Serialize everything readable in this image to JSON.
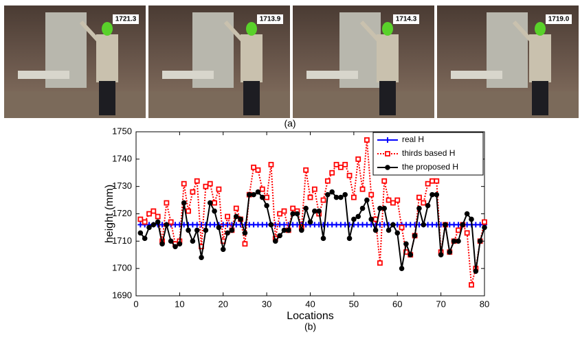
{
  "photos": {
    "labels": [
      "1721.3",
      "1713.9",
      "1714.3",
      "1719.0"
    ],
    "caption": "(a)"
  },
  "chart_data": {
    "type": "line",
    "caption": "(b)",
    "xlabel": "Locations",
    "ylabel": "height (mm)",
    "x": [
      1,
      2,
      3,
      4,
      5,
      6,
      7,
      8,
      9,
      10,
      11,
      12,
      13,
      14,
      15,
      16,
      17,
      18,
      19,
      20,
      21,
      22,
      23,
      24,
      25,
      26,
      27,
      28,
      29,
      30,
      31,
      32,
      33,
      34,
      35,
      36,
      37,
      38,
      39,
      40,
      41,
      42,
      43,
      44,
      45,
      46,
      47,
      48,
      49,
      50,
      51,
      52,
      53,
      54,
      55,
      56,
      57,
      58,
      59,
      60,
      61,
      62,
      63,
      64,
      65,
      66,
      67,
      68,
      69,
      70,
      71,
      72,
      73,
      74,
      75,
      76,
      77,
      78,
      79,
      80
    ],
    "series": [
      {
        "name": "real H",
        "color": "#0000ff",
        "marker": "plus",
        "dash": "solid",
        "values": [
          1716,
          1716,
          1716,
          1716,
          1716,
          1716,
          1716,
          1716,
          1716,
          1716,
          1716,
          1716,
          1716,
          1716,
          1716,
          1716,
          1716,
          1716,
          1716,
          1716,
          1716,
          1716,
          1716,
          1716,
          1716,
          1716,
          1716,
          1716,
          1716,
          1716,
          1716,
          1716,
          1716,
          1716,
          1716,
          1716,
          1716,
          1716,
          1716,
          1716,
          1716,
          1716,
          1716,
          1716,
          1716,
          1716,
          1716,
          1716,
          1716,
          1716,
          1716,
          1716,
          1716,
          1716,
          1716,
          1716,
          1716,
          1716,
          1716,
          1716,
          1716,
          1716,
          1716,
          1716,
          1716,
          1716,
          1716,
          1716,
          1716,
          1716,
          1716,
          1716,
          1716,
          1716,
          1716,
          1716,
          1716,
          1716,
          1716,
          1716
        ]
      },
      {
        "name": "thirds based H",
        "color": "#ff0000",
        "marker": "square",
        "dash": "dotted",
        "values": [
          1718,
          1717,
          1720,
          1721,
          1719,
          1710,
          1724,
          1717,
          1709,
          1710,
          1731,
          1721,
          1728,
          1732,
          1708,
          1730,
          1731,
          1724,
          1729,
          1710,
          1719,
          1714,
          1722,
          1718,
          1709,
          1727,
          1737,
          1736,
          1729,
          1726,
          1738,
          1711,
          1720,
          1721,
          1714,
          1722,
          1721,
          1715,
          1736,
          1726,
          1729,
          1720,
          1725,
          1732,
          1735,
          1738,
          1737,
          1738,
          1734,
          1726,
          1740,
          1729,
          1747,
          1727,
          1718,
          1702,
          1732,
          1725,
          1724,
          1725,
          1715,
          1706,
          1705,
          1712,
          1726,
          1724,
          1731,
          1732,
          1732,
          1706,
          1716,
          1706,
          1710,
          1714,
          1716,
          1713,
          1694,
          1700,
          1710,
          1717
        ]
      },
      {
        "name": "the proposed H",
        "color": "#000000",
        "marker": "circle",
        "dash": "solid",
        "values": [
          1713,
          1711,
          1715,
          1716,
          1717,
          1709,
          1716,
          1710,
          1708,
          1709,
          1724,
          1714,
          1710,
          1714,
          1704,
          1714,
          1724,
          1721,
          1715,
          1707,
          1713,
          1714,
          1719,
          1718,
          1713,
          1727,
          1727,
          1728,
          1726,
          1723,
          1716,
          1710,
          1712,
          1714,
          1714,
          1720,
          1720,
          1714,
          1722,
          1717,
          1721,
          1721,
          1711,
          1727,
          1728,
          1726,
          1726,
          1727,
          1711,
          1718,
          1719,
          1722,
          1725,
          1718,
          1714,
          1722,
          1722,
          1714,
          1716,
          1713,
          1700,
          1709,
          1705,
          1712,
          1722,
          1716,
          1723,
          1727,
          1727,
          1705,
          1716,
          1706,
          1710,
          1710,
          1716,
          1720,
          1718,
          1699,
          1710,
          1715
        ]
      }
    ],
    "xlim": [
      0,
      80
    ],
    "xticks": [
      0,
      10,
      20,
      30,
      40,
      50,
      60,
      70,
      80
    ],
    "ylim": [
      1690,
      1750
    ],
    "yticks": [
      1690,
      1700,
      1710,
      1720,
      1730,
      1740,
      1750
    ],
    "grid": false,
    "legend": "upper right"
  }
}
